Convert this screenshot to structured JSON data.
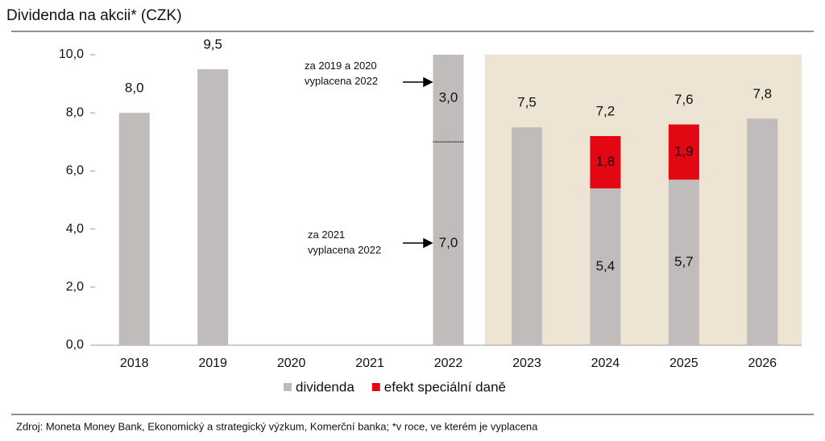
{
  "chart_data": {
    "type": "stacked_bar",
    "title": "Dividenda na akcii* (CZK)",
    "categories": [
      "2018",
      "2019",
      "2020",
      "2021",
      "2022",
      "2023",
      "2024",
      "2025",
      "2026"
    ],
    "series": [
      {
        "name": "dividenda",
        "color": "#c0bcbc",
        "values": [
          8.0,
          9.5,
          null,
          null,
          7.0,
          7.5,
          5.4,
          5.7,
          7.8
        ],
        "value_labels": [
          null,
          null,
          null,
          null,
          "7,0",
          null,
          "5,4",
          "5,7",
          null
        ]
      },
      {
        "name": "dividenda",
        "color": "#c0bcbc",
        "values": [
          null,
          null,
          null,
          null,
          3.0,
          null,
          null,
          null,
          null
        ],
        "value_labels": [
          null,
          null,
          null,
          null,
          "3,0",
          null,
          null,
          null,
          null
        ]
      },
      {
        "name": "efekt speciální daně",
        "color": "#e30613",
        "values": [
          null,
          null,
          null,
          null,
          null,
          null,
          1.8,
          1.9,
          null
        ],
        "value_labels": [
          null,
          null,
          null,
          null,
          null,
          null,
          "1,8",
          "1,9",
          null
        ]
      }
    ],
    "totals": {
      "values": [
        8.0,
        9.5,
        null,
        null,
        null,
        7.5,
        7.2,
        7.6,
        7.8
      ],
      "value_labels": [
        "8,0",
        "9,5",
        null,
        null,
        null,
        "7,5",
        "7,2",
        "7,6",
        "7,8"
      ]
    },
    "ylim": [
      0,
      10
    ],
    "yticks": [
      {
        "value": 0,
        "label": "0,0"
      },
      {
        "value": 2,
        "label": "2,0"
      },
      {
        "value": 4,
        "label": "4,0"
      },
      {
        "value": 6,
        "label": "6,0"
      },
      {
        "value": 8,
        "label": "8,0"
      },
      {
        "value": 10,
        "label": "10,0"
      }
    ],
    "annotations": [
      {
        "text": [
          "za 2019  a  2020",
          "vyplacena 2022"
        ]
      },
      {
        "text": [
          "za 2021",
          "vyplacena 2022"
        ]
      }
    ],
    "legend": "bottom",
    "source": "Zdroj: Moneta Money Bank, Ekonomický a strategický výzkum, Komerční banka; *v roce, ve kterém je vyplacena"
  }
}
